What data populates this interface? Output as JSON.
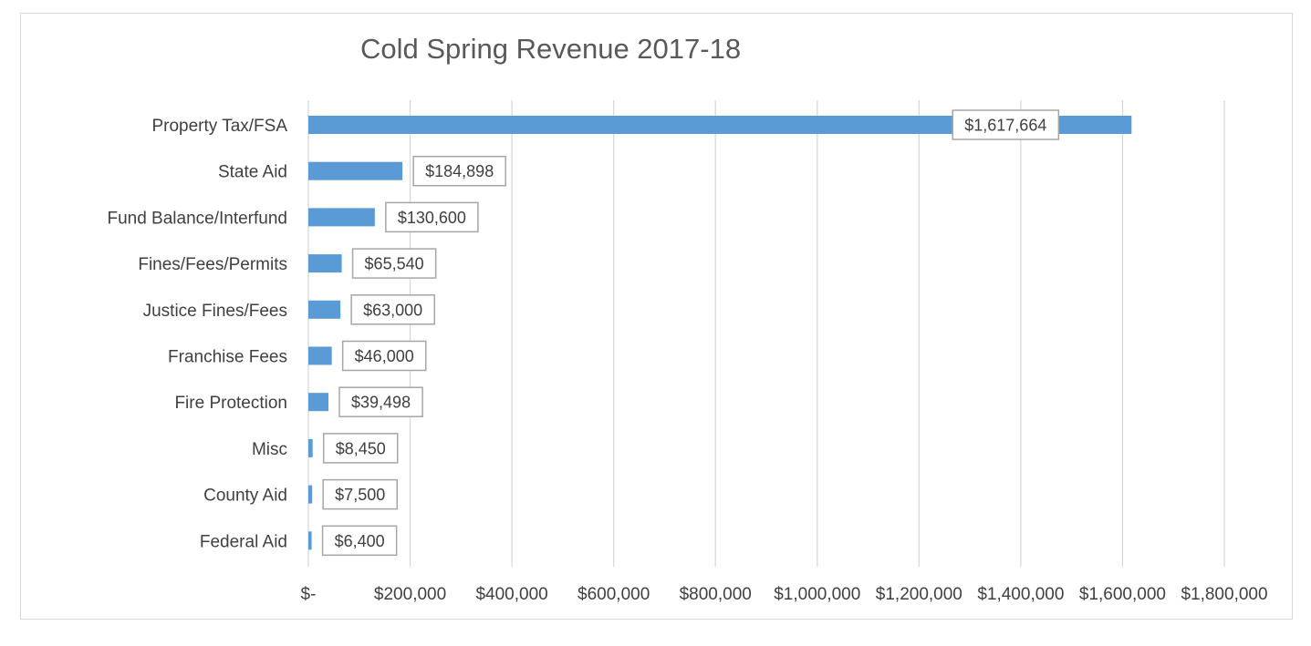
{
  "chart_data": {
    "type": "bar",
    "orientation": "horizontal",
    "title": "Cold Spring Revenue 2017-18",
    "xlabel": "",
    "ylabel": "",
    "categories": [
      "Property Tax/FSA",
      "State Aid",
      "Fund Balance/Interfund",
      "Fines/Fees/Permits",
      "Justice Fines/Fees",
      "Franchise Fees",
      "Fire Protection",
      "Misc",
      "County Aid",
      "Federal Aid"
    ],
    "values": [
      1617664,
      184898,
      130600,
      65540,
      63000,
      46000,
      39498,
      8450,
      7500,
      6400
    ],
    "data_labels": [
      "$1,617,664",
      "$184,898",
      "$130,600",
      "$65,540",
      "$63,000",
      "$46,000",
      "$39,498",
      "$8,450",
      "$7,500",
      "$6,400"
    ],
    "xlim": [
      0,
      1800000
    ],
    "x_ticks": [
      0,
      200000,
      400000,
      600000,
      800000,
      1000000,
      1200000,
      1400000,
      1600000,
      1800000
    ],
    "x_tick_labels": [
      "$-",
      "$200,000",
      "$400,000",
      "$600,000",
      "$800,000",
      "$1,000,000",
      "$1,200,000",
      "$1,400,000",
      "$1,600,000",
      "$1,800,000"
    ],
    "grid": "vertical",
    "legend": "none",
    "bar_color": "#5b9bd5"
  }
}
